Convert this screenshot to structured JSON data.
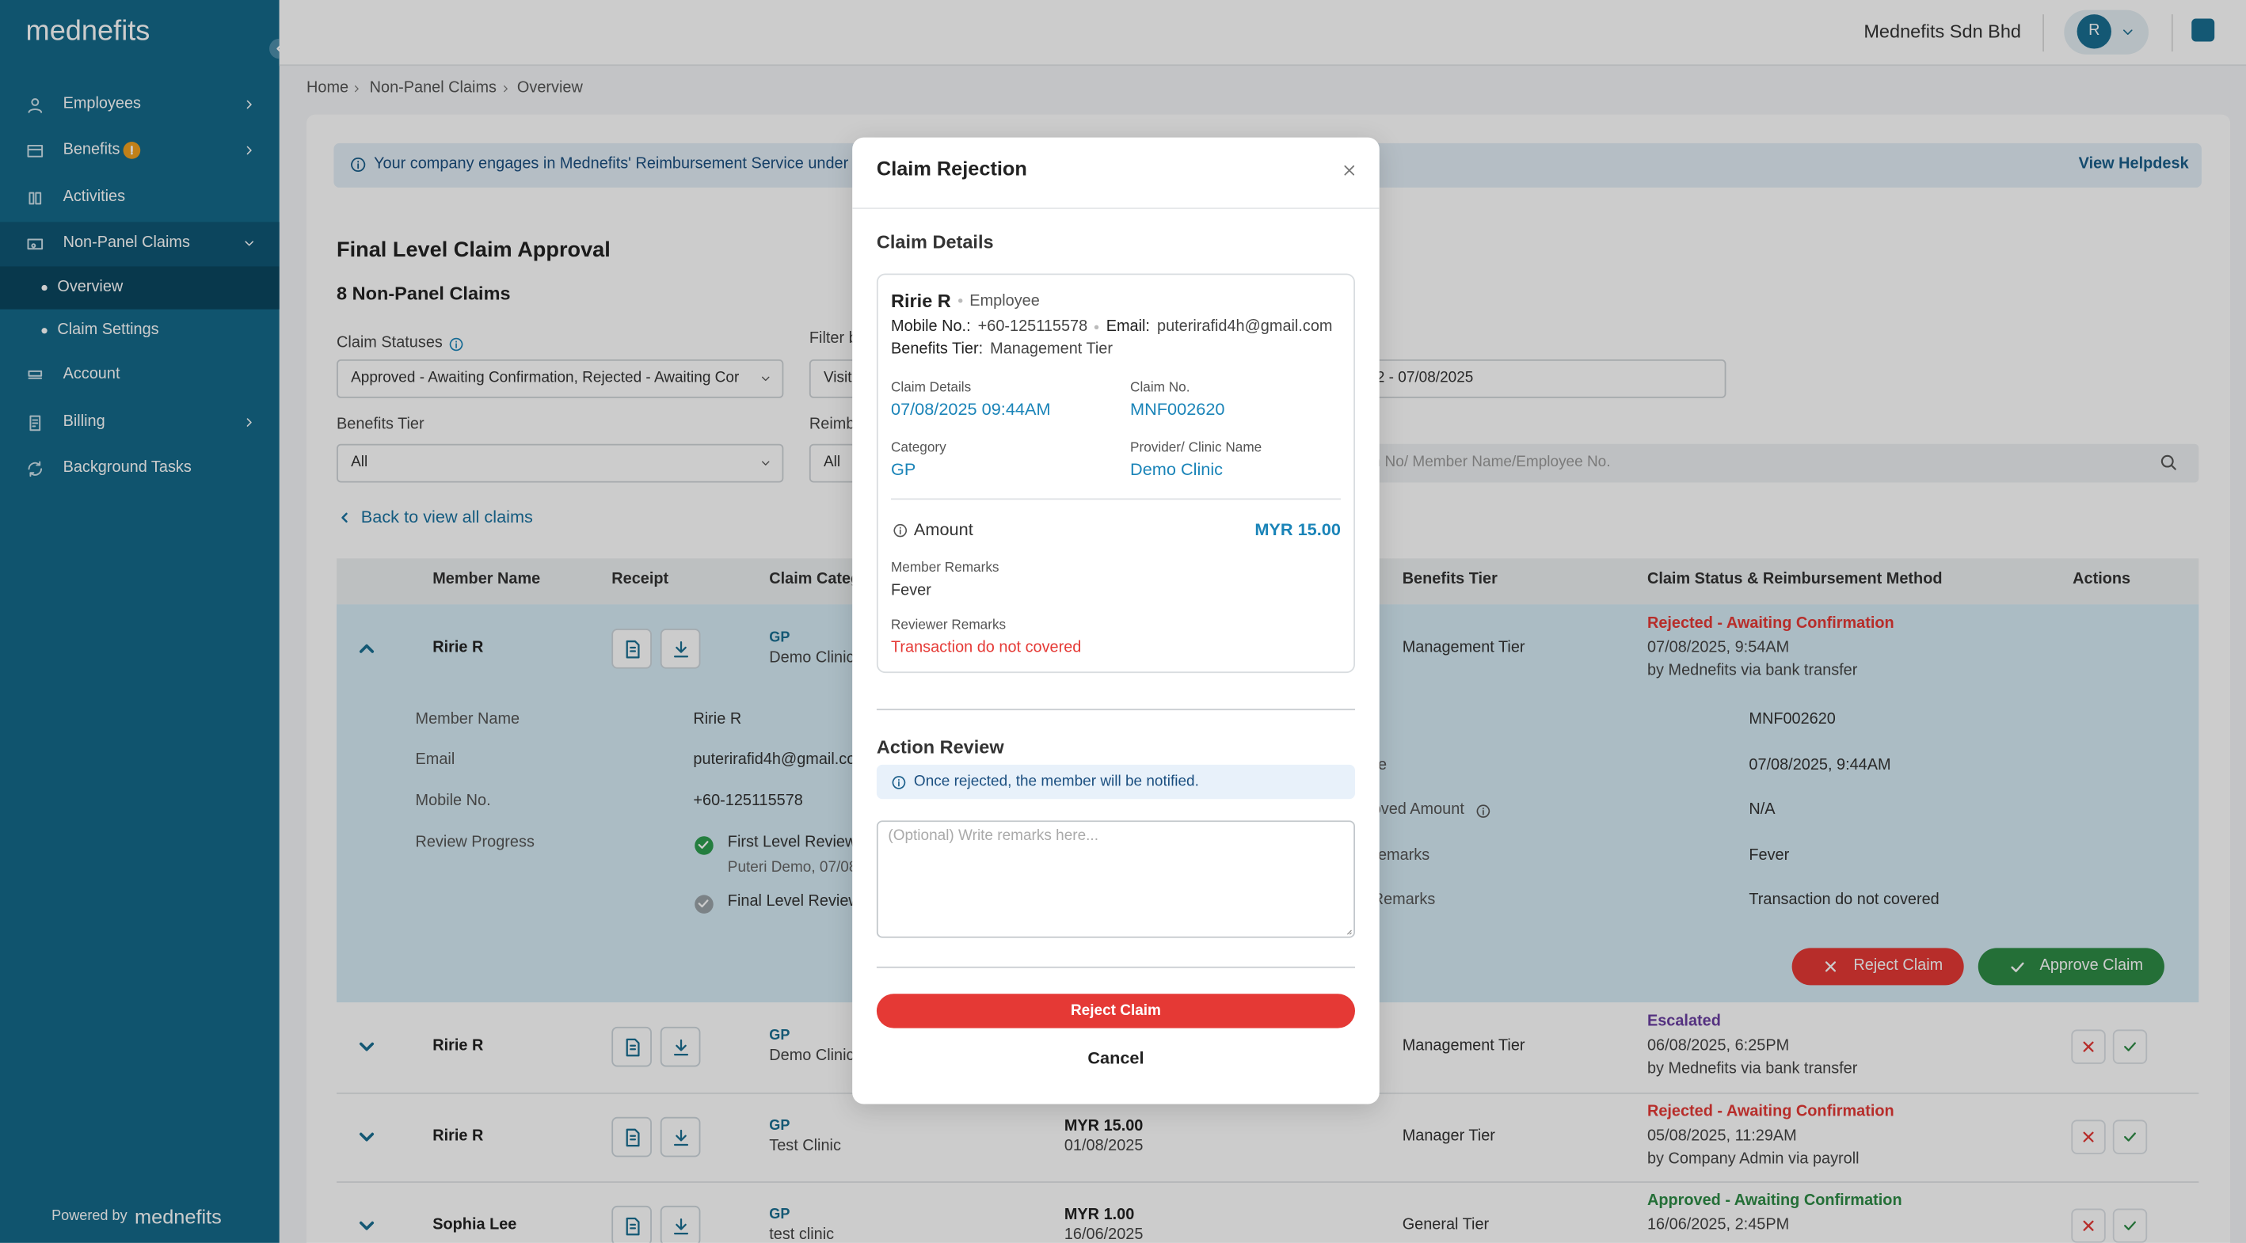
{
  "sidebar": {
    "logo": "mednefits",
    "menu": [
      "Employees",
      "Benefits",
      "Activities",
      "Non-Panel Claims",
      "Overview",
      "Claim Settings",
      "Account",
      "Billing",
      "Background Tasks"
    ],
    "footer": "Powered by",
    "footer_logo": "mednefits"
  },
  "topbar": {
    "company": "Mednefits Sdn Bhd",
    "avatar": "R"
  },
  "breadcrumb": [
    "Home",
    "Non-Panel Claims",
    "Overview"
  ],
  "banner": {
    "text": "Your company engages in Mednefits' Reimbursement Service under S",
    "link": "View Helpdesk"
  },
  "header": {
    "title": "Final Level Claim Approval",
    "subtitle": "8 Non-Panel Claims"
  },
  "filters": [
    {
      "label": "Claim Statuses",
      "value": "Approved - Awaiting Confirmation, Rejected - Awaiting Cor"
    },
    {
      "label": "Filter b",
      "value": "Visit"
    },
    {
      "value": "22 - 07/08/2025"
    },
    {
      "label": "Benefits Tier",
      "value": "All"
    },
    {
      "label": "Reimb",
      "value": "All"
    },
    {
      "placeholder": "n No/ Member Name/Employee No."
    }
  ],
  "back_link": "Back to view all claims",
  "table": {
    "columns": [
      "Member Name",
      "Receipt",
      "Claim Categ",
      "Benefits Tier",
      "Claim Status & Reimbursement Method",
      "Actions"
    ],
    "rows": [
      {
        "member": "Ririe R",
        "category": "GP",
        "clinic": "Demo Clinic",
        "tier": "Management Tier",
        "status": "Rejected - Awaiting Confirmation",
        "status_color": "#e53935",
        "date": "07/08/2025, 9:54AM",
        "method": "by Mednefits via bank transfer"
      },
      {
        "member": "Ririe R",
        "category": "GP",
        "clinic": "Demo Clinic",
        "tier": "Management Tier",
        "status": "Escalated",
        "status_color": "#6a3ea1",
        "date": "06/08/2025, 6:25PM",
        "method": "by Mednefits via bank transfer"
      },
      {
        "member": "Ririe R",
        "category": "GP",
        "clinic": "Test Clinic",
        "amount": "MYR 15.00",
        "amount_date": "01/08/2025",
        "tier": "Manager Tier",
        "status": "Rejected - Awaiting Confirmation",
        "status_color": "#e53935",
        "date": "05/08/2025, 11:29AM",
        "method": "by Company Admin via payroll"
      },
      {
        "member": "Sophia Lee",
        "category": "GP",
        "clinic": "test clinic",
        "amount": "MYR 1.00",
        "amount_date": "16/06/2025",
        "tier": "General Tier",
        "status": "Approved - Awaiting Confirmation",
        "status_color": "#2e8b45",
        "date": "16/06/2025, 2:45PM"
      }
    ]
  },
  "details": {
    "left": [
      [
        "Member Name",
        "Ririe R"
      ],
      [
        "Email",
        "puterirafid4h@gmail.co"
      ],
      [
        "Mobile No.",
        "+60-125115578"
      ]
    ],
    "progress_label": "Review Progress",
    "progress": [
      {
        "step": "First Level Review (",
        "by": "Puteri Demo, 07/08"
      },
      {
        "step": "Final Level Review"
      }
    ],
    "right": [
      {
        "value": "MNF002620"
      },
      {
        "label": "e",
        "value": "07/08/2025, 9:44AM"
      },
      {
        "label": "oved Amount",
        "value": "N/A"
      },
      {
        "label": "emarks",
        "value": "Fever"
      },
      {
        "label": "Remarks",
        "value": "Transaction do not covered"
      }
    ],
    "reject": "Reject Claim",
    "approve": "Approve Claim"
  },
  "modal": {
    "title": "Claim Rejection",
    "section": "Claim Details",
    "name": "Ririe R",
    "role": "Employee",
    "mobile_label": "Mobile No.:",
    "mobile": "+60-125115578",
    "email_label": "Email:",
    "email": "puterirafid4h@gmail.com",
    "tier_label": "Benefits Tier:",
    "tier": "Management Tier",
    "fields": [
      {
        "label": "Claim Details",
        "value": "07/08/2025 09:44AM"
      },
      {
        "label": "Claim No.",
        "value": "MNF002620"
      },
      {
        "label": "Category",
        "value": "GP"
      },
      {
        "label": "Provider/ Clinic Name",
        "value": "Demo Clinic"
      }
    ],
    "amount_label": "Amount",
    "amount": "MYR 15.00",
    "member_remarks_label": "Member Remarks",
    "member_remarks": "Fever",
    "reviewer_remarks_label": "Reviewer Remarks",
    "reviewer_remarks": "Transaction do not covered",
    "action_title": "Action Review",
    "notice": "Once rejected, the member will be notified.",
    "placeholder": "(Optional) Write remarks here...",
    "submit": "Reject Claim",
    "cancel": "Cancel"
  }
}
